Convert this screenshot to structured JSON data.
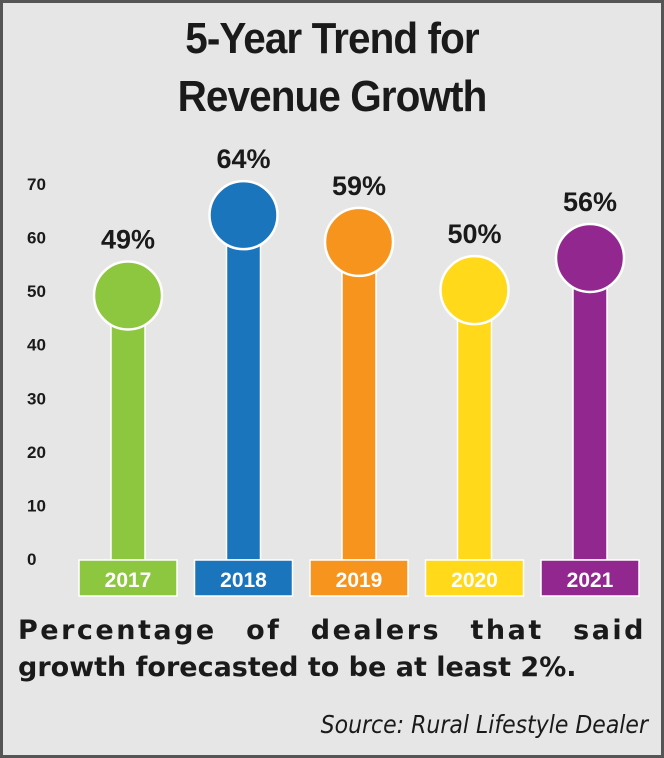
{
  "chart_data": {
    "type": "bar",
    "style": "lollipop",
    "title": "5-Year Trend for Revenue Growth",
    "title_lines": [
      "5-Year Trend for",
      "Revenue Growth"
    ],
    "categories": [
      "2017",
      "2018",
      "2019",
      "2020",
      "2021"
    ],
    "values": [
      49,
      64,
      59,
      50,
      56
    ],
    "data_labels": [
      "49%",
      "64%",
      "59%",
      "50%",
      "56%"
    ],
    "colors": [
      "#8dc63f",
      "#1b75bc",
      "#f7941d",
      "#ffd91a",
      "#92278f"
    ],
    "yticks": [
      "0",
      "10",
      "20",
      "30",
      "40",
      "50",
      "60",
      "70"
    ],
    "ylim": [
      0,
      70
    ],
    "xlabel": "",
    "ylabel": "",
    "grid": false,
    "caption_lines": [
      "Percentage of dealers that said",
      "growth forecasted to be at least 2%."
    ],
    "source": "Source: Rural Lifestyle Dealer"
  }
}
